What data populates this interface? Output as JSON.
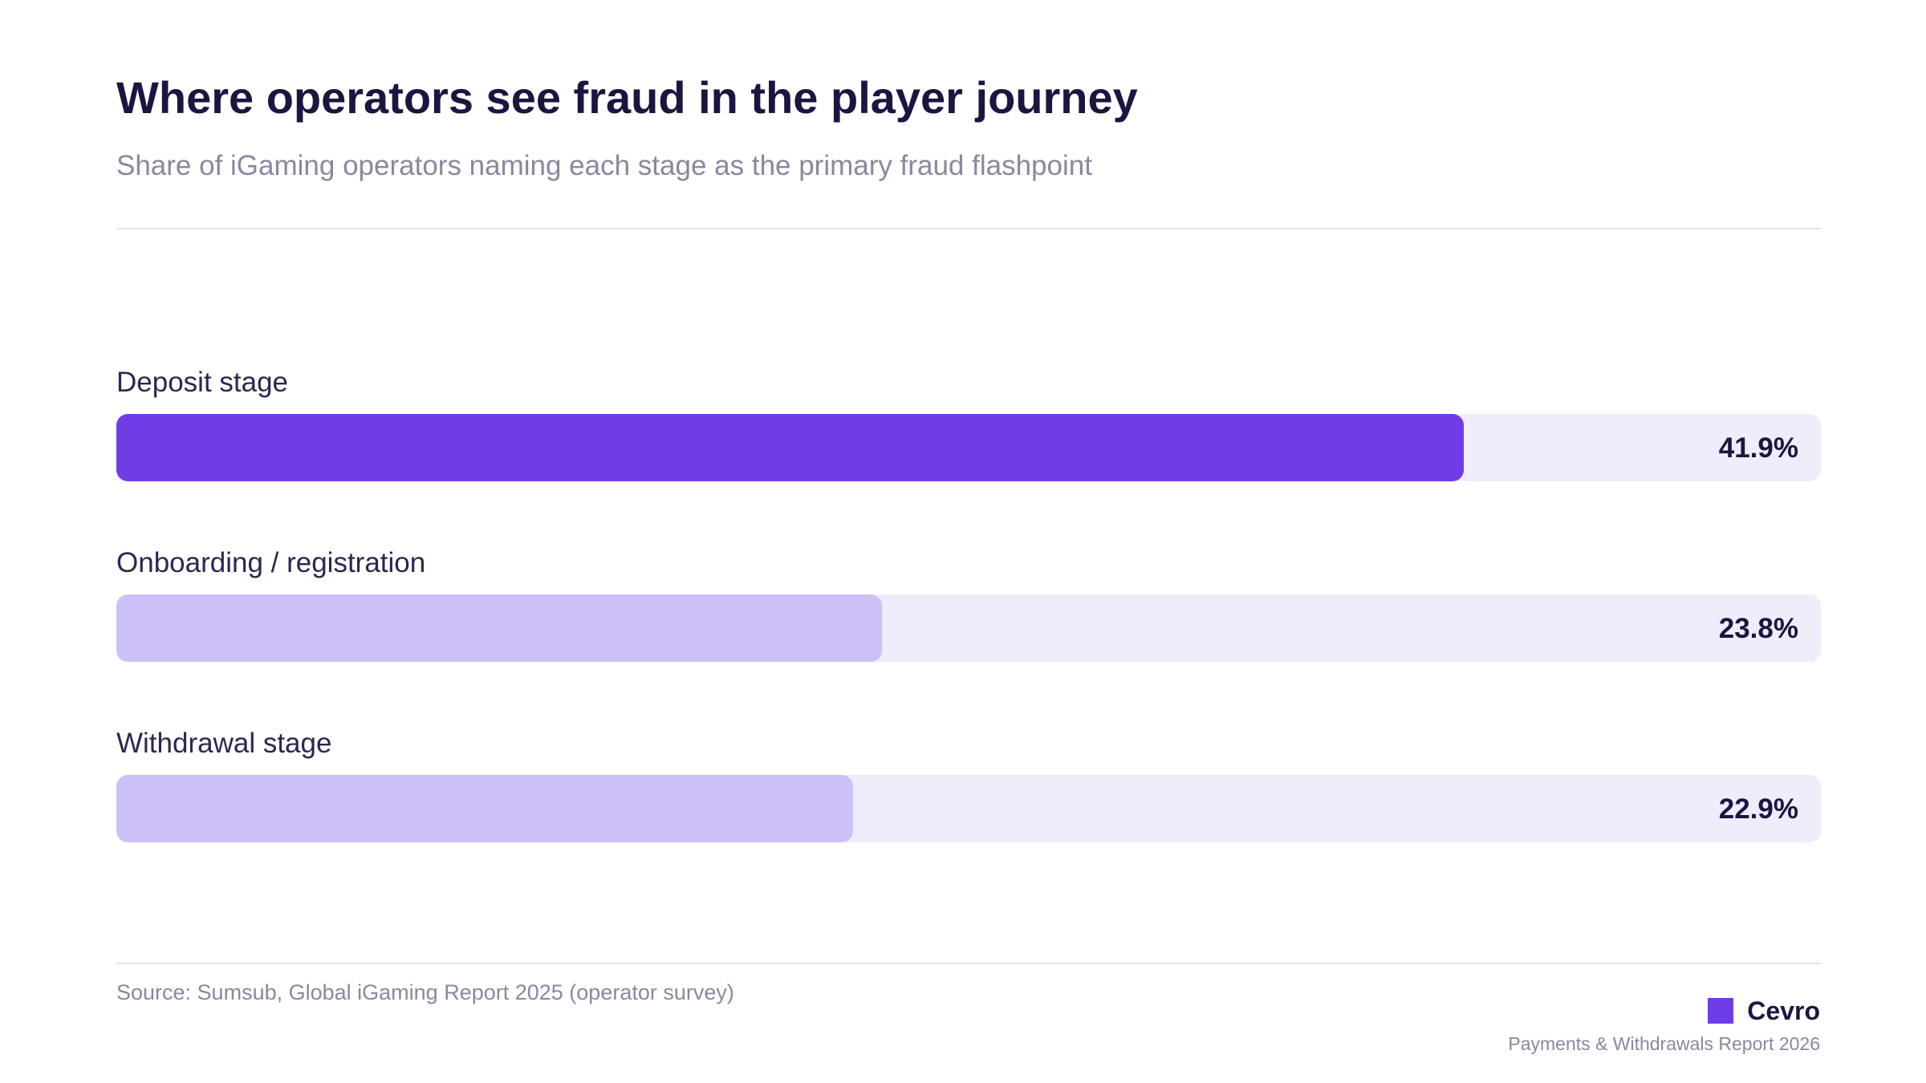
{
  "chart_data": {
    "type": "bar",
    "orientation": "horizontal",
    "title": "Where operators see fraud in the player journey",
    "subtitle": "Share of iGaming operators naming each stage as the primary fraud flashpoint",
    "categories": [
      "Deposit stage",
      "Onboarding / registration",
      "Withdrawal stage"
    ],
    "values": [
      41.9,
      23.8,
      22.9
    ],
    "value_labels": [
      "41.9%",
      "23.8%",
      "22.9%"
    ],
    "xlim": [
      0,
      53
    ],
    "grid": false,
    "colors": {
      "highlight": "#6e3de8",
      "secondary": "#cdc0f7",
      "track": "#efecfb"
    }
  },
  "footer": {
    "source": "Source: Sumsub, Global iGaming Report 2025 (operator survey)",
    "brand": "Cevro",
    "report": "Payments & Withdrawals Report 2026"
  }
}
